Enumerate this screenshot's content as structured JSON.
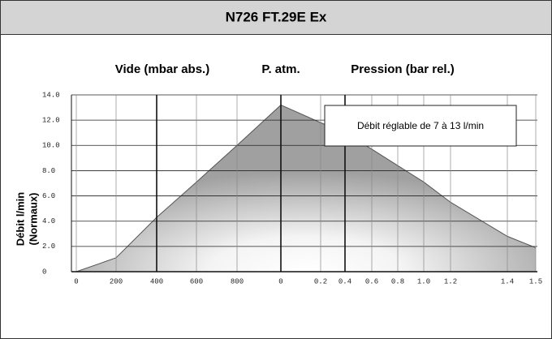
{
  "chart_data": {
    "type": "area",
    "title": "N726 FT.29E Ex",
    "annotations": [
      "Vide (mbar abs.)",
      "P. atm.",
      "Pression (bar rel.)",
      "Débit réglable de 7 à 13 l/min"
    ],
    "ylabel": [
      "Débit l/min",
      "(Normaux)"
    ],
    "categories": [
      "0",
      "200",
      "400",
      "600",
      "800",
      "0",
      "0.2",
      "0.4",
      "0.6",
      "0.8",
      "1.0",
      "1.2",
      "1.4",
      "1.5"
    ],
    "values": [
      0,
      1.1,
      4.3,
      7.1,
      10.0,
      13.2,
      11.8,
      11.0,
      9.7,
      8.4,
      7.1,
      5.5,
      2.8,
      1.9
    ],
    "color": "#a0a0a0",
    "ylim": [
      0,
      14
    ],
    "yticks": [
      0,
      {
        "value": 2,
        "label": "2.0"
      },
      {
        "value": 4,
        "label": "4.0"
      },
      {
        "value": 6,
        "label": "6.0"
      },
      {
        "value": 8,
        "label": "8.0"
      },
      {
        "value": 10,
        "label": "10.0"
      },
      {
        "value": 12,
        "label": "12.0"
      },
      {
        "value": 14,
        "label": "14.0"
      }
    ],
    "grid": true
  }
}
